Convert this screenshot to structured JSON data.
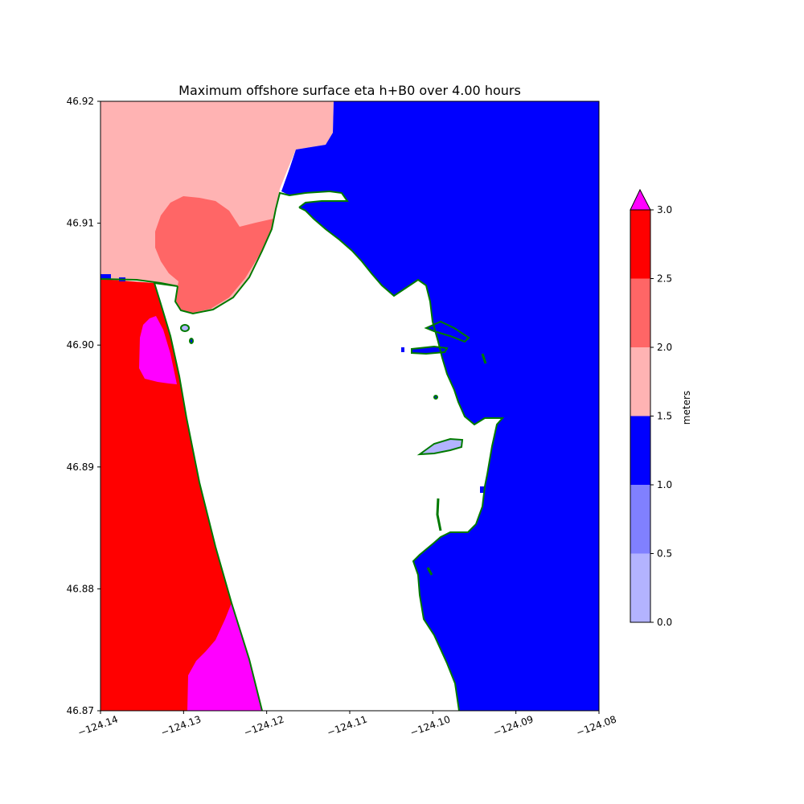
{
  "title": "Maximum offshore surface eta h+B0 over 4.00 hours",
  "map": {
    "x_ticks": [
      "−124.14",
      "−124.13",
      "−124.12",
      "−124.11",
      "−124.10",
      "−124.09",
      "−124.08"
    ],
    "y_ticks": [
      "46.87",
      "46.88",
      "46.89",
      "46.90",
      "46.91",
      "46.92"
    ],
    "xlim": [
      -124.14,
      -124.08
    ],
    "ylim": [
      46.87,
      46.92
    ],
    "land_color": "#ffffff",
    "shoreline_color": "#007a00",
    "field_colors": {
      "red": "#ff0000",
      "light_red": "#ff6666",
      "pink": "#ffb3b3",
      "magenta": "#ff00ff",
      "blue": "#0000ff",
      "light_blue": "#b3b3ff"
    }
  },
  "colorbar": {
    "label": "meters",
    "ticks": [
      "0.0",
      "0.5",
      "1.0",
      "1.5",
      "2.0",
      "2.5",
      "3.0"
    ],
    "extend": "max",
    "levels": [
      {
        "from": 0.0,
        "to": 0.5,
        "color": "#b3b3ff"
      },
      {
        "from": 0.5,
        "to": 1.0,
        "color": "#8080ff"
      },
      {
        "from": 1.0,
        "to": 1.5,
        "color": "#0000ff"
      },
      {
        "from": 1.5,
        "to": 2.0,
        "color": "#ffb3b3"
      },
      {
        "from": 2.0,
        "to": 2.5,
        "color": "#ff6666"
      },
      {
        "from": 2.5,
        "to": 3.0,
        "color": "#ff0000"
      }
    ],
    "over_color": "#ff00ff"
  }
}
